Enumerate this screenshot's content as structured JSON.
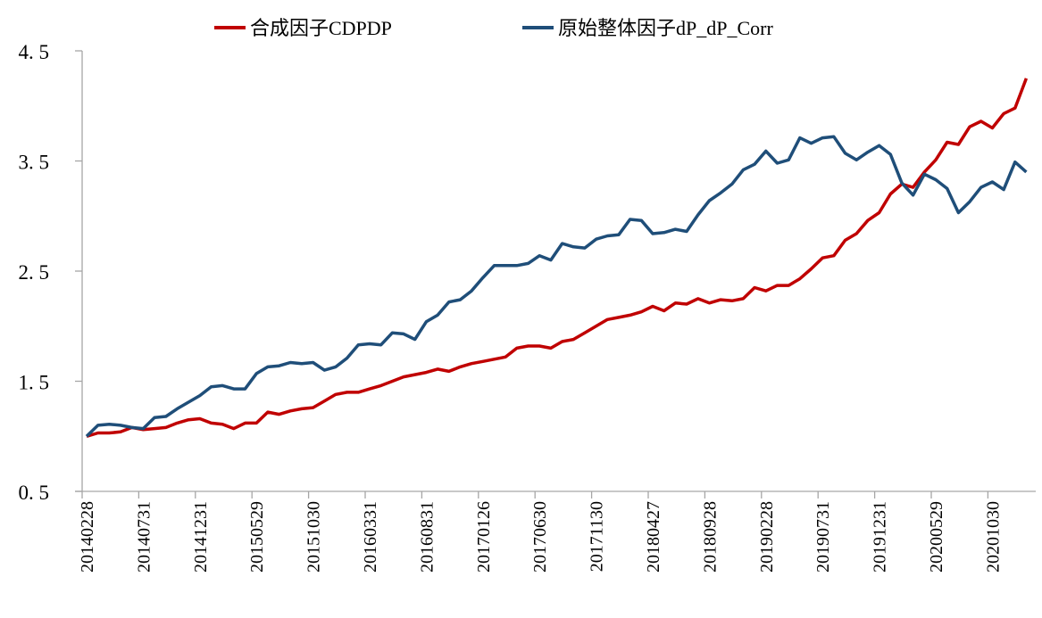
{
  "chart_data": {
    "type": "line",
    "title": "",
    "xlabel": "",
    "ylabel": "",
    "ylim": [
      0.5,
      4.5
    ],
    "y_ticks": [
      "0. 5",
      "1. 5",
      "2. 5",
      "3. 5",
      "4. 5"
    ],
    "y_tick_values": [
      0.5,
      1.5,
      2.5,
      3.5,
      4.5
    ],
    "x_tick_labels": [
      "20140228",
      "20140731",
      "20141231",
      "20150529",
      "20151030",
      "20160331",
      "20160831",
      "20170126",
      "20170630",
      "20171130",
      "20180427",
      "20180928",
      "20190228",
      "20190731",
      "20191231",
      "20200529",
      "20201030"
    ],
    "x_tick_every": 5,
    "grid": false,
    "legend_position": "top",
    "series": [
      {
        "name": "合成因子CDPDP",
        "color": "#C00000",
        "values": [
          1.0,
          1.03,
          1.03,
          1.04,
          1.08,
          1.06,
          1.07,
          1.08,
          1.12,
          1.15,
          1.16,
          1.12,
          1.11,
          1.07,
          1.12,
          1.12,
          1.22,
          1.2,
          1.23,
          1.25,
          1.26,
          1.32,
          1.38,
          1.4,
          1.4,
          1.43,
          1.46,
          1.5,
          1.54,
          1.56,
          1.58,
          1.61,
          1.59,
          1.63,
          1.66,
          1.68,
          1.7,
          1.72,
          1.8,
          1.82,
          1.82,
          1.8,
          1.86,
          1.88,
          1.94,
          2.0,
          2.06,
          2.08,
          2.1,
          2.13,
          2.18,
          2.14,
          2.21,
          2.2,
          2.25,
          2.21,
          2.24,
          2.23,
          2.25,
          2.35,
          2.32,
          2.37,
          2.37,
          2.43,
          2.52,
          2.62,
          2.64,
          2.78,
          2.84,
          2.96,
          3.03,
          3.2,
          3.29,
          3.26,
          3.4,
          3.51,
          3.67,
          3.65,
          3.81,
          3.86,
          3.8,
          3.93,
          3.98,
          4.25
        ]
      },
      {
        "name": "原始整体因子dP_dP_Corr",
        "color": "#1F4E79",
        "values": [
          1.0,
          1.1,
          1.11,
          1.1,
          1.08,
          1.07,
          1.17,
          1.18,
          1.25,
          1.31,
          1.37,
          1.45,
          1.46,
          1.43,
          1.43,
          1.57,
          1.63,
          1.64,
          1.67,
          1.66,
          1.67,
          1.6,
          1.63,
          1.71,
          1.83,
          1.84,
          1.83,
          1.94,
          1.93,
          1.88,
          2.04,
          2.1,
          2.22,
          2.24,
          2.32,
          2.44,
          2.55,
          2.55,
          2.55,
          2.57,
          2.64,
          2.6,
          2.75,
          2.72,
          2.71,
          2.79,
          2.82,
          2.83,
          2.97,
          2.96,
          2.84,
          2.85,
          2.88,
          2.86,
          3.01,
          3.14,
          3.21,
          3.29,
          3.42,
          3.47,
          3.59,
          3.48,
          3.51,
          3.71,
          3.66,
          3.71,
          3.72,
          3.57,
          3.51,
          3.58,
          3.64,
          3.56,
          3.3,
          3.19,
          3.38,
          3.33,
          3.25,
          3.03,
          3.13,
          3.26,
          3.31,
          3.24,
          3.49,
          3.4
        ]
      }
    ]
  }
}
